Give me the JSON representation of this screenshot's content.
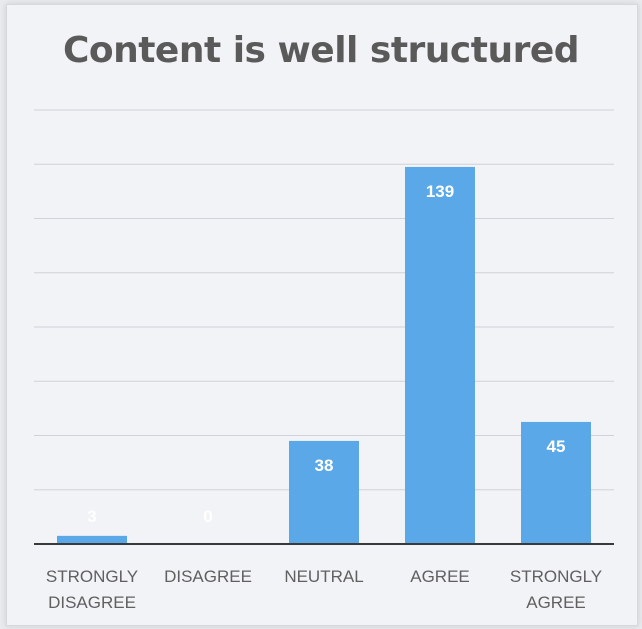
{
  "chart_data": {
    "type": "bar",
    "title": "Content is well structured",
    "categories": [
      [
        "STRONGLY",
        "DISAGREE"
      ],
      [
        "DISAGREE"
      ],
      [
        "NEUTRAL"
      ],
      [
        "AGREE"
      ],
      [
        "STRONGLY",
        "AGREE"
      ]
    ],
    "values": [
      3,
      0,
      38,
      139,
      45
    ],
    "data_labels": [
      "3",
      "0",
      "38",
      "139",
      "45"
    ],
    "ylim": [
      0,
      160
    ],
    "grid": true,
    "legend": "none",
    "colors": {
      "bar": "#5ba8e8",
      "grid": "#cfd2d8",
      "axis": "#3a3a3a"
    }
  }
}
